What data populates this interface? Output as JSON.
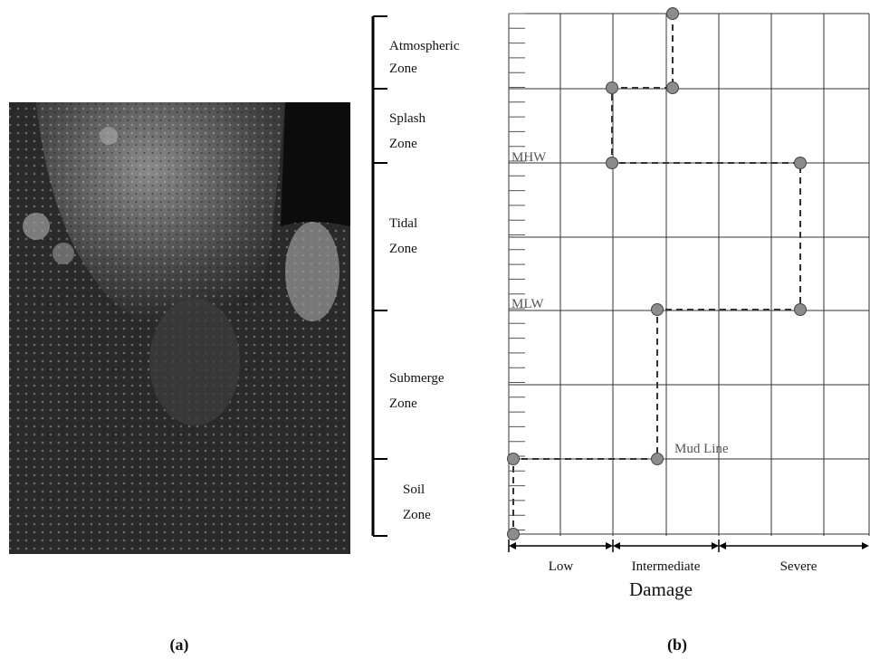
{
  "zones": [
    [
      "Atmospheric",
      "Zone"
    ],
    [
      "Splash",
      "Zone"
    ],
    [
      "Tidal",
      "Zone"
    ],
    [
      "Submerge",
      "Zone"
    ],
    [
      "Soil",
      "Zone"
    ]
  ],
  "levels": [
    "MHW",
    "MLW",
    "Mud Line"
  ],
  "damage": {
    "title": "Damage",
    "categories": [
      "Low",
      "Intermediate",
      "Severe"
    ]
  },
  "captions": [
    "(a)",
    "(b)"
  ]
}
